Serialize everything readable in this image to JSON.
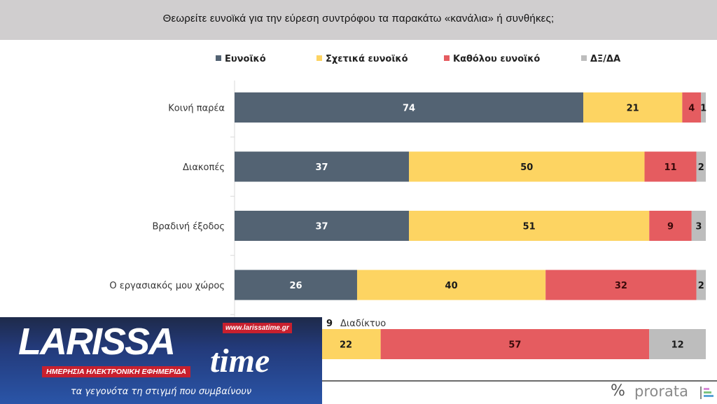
{
  "header": {
    "title": "Θεωρείτε ευνοϊκά για την εύρεση  συντρόφου τα παρακάτω «κανάλια» ή συνθήκες;"
  },
  "chart_data": {
    "type": "bar",
    "orientation": "horizontal",
    "stacked": true,
    "title": "Θεωρείτε ευνοϊκά για την εύρεση  συντρόφου τα παρακάτω «κανάλια» ή συνθήκες;",
    "unit": "%",
    "xlim": [
      0,
      100
    ],
    "grid": false,
    "legend_position": "top",
    "categories": [
      "Κοινή παρέα",
      "Διακοπές",
      "Βραδινή έξοδος",
      "Ο εργασιακός μου χώρος",
      "Διαδίκτυο"
    ],
    "series": [
      {
        "name": "Ευνοϊκό",
        "color": "#536373",
        "label_color": "#ffffff",
        "values": [
          74,
          37,
          37,
          26,
          9
        ]
      },
      {
        "name": "Σχετικά ευνοϊκό",
        "color": "#fdd462",
        "label_color": "#1a1a1a",
        "values": [
          21,
          50,
          51,
          40,
          22
        ]
      },
      {
        "name": "Καθόλου ευνοϊκό",
        "color": "#e55c60",
        "label_color": "#3a0a0a",
        "values": [
          4,
          11,
          9,
          32,
          57
        ]
      },
      {
        "name": "ΔΞ/ΔΑ",
        "color": "#bdbdbd",
        "label_color": "#1a1a1a",
        "values": [
          1,
          2,
          3,
          2,
          12
        ]
      }
    ],
    "hidden_category_note": "fifth row label and first segment covered by overlay logo"
  },
  "legend": [
    {
      "label": "Ευνοϊκό",
      "color": "#536373"
    },
    {
      "label": "Σχετικά ευνοϊκό",
      "color": "#fdd462"
    },
    {
      "label": "Καθόλου ευνοϊκό",
      "color": "#e55c60"
    },
    {
      "label": "ΔΞ/ΔΑ",
      "color": "#bdbdbd"
    }
  ],
  "footer": {
    "percent_symbol": "%",
    "brand": "prorata"
  },
  "overlay_logo": {
    "name_main": "LARISSA",
    "name_time": "time",
    "url": "www.larissatime.gr",
    "tagline": "ΗΜΕΡΗΣΙΑ ΗΛΕΚΤΡΟΝΙΚΗ ΕΦΗΜΕΡΙΔΑ",
    "slogan": "τα γεγονότα τη στιγμή που συμβαίνουν"
  }
}
